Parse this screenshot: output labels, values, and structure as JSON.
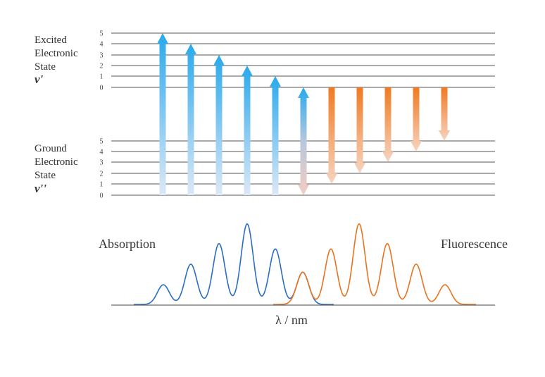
{
  "excited_state": {
    "line1": "Excited",
    "line2": "Electronic",
    "line3": "State",
    "symbol": "ν'",
    "levels": [
      "5",
      "4",
      "3",
      "2",
      "1",
      "0"
    ]
  },
  "ground_state": {
    "line1": "Ground",
    "line2": "Electronic",
    "line3": "State",
    "symbol": "ν''",
    "levels": [
      "5",
      "4",
      "3",
      "2",
      "1",
      "0"
    ]
  },
  "absorption_transitions": [
    {
      "from_v": 0,
      "to_v": 5
    },
    {
      "from_v": 0,
      "to_v": 4
    },
    {
      "from_v": 0,
      "to_v": 3
    },
    {
      "from_v": 0,
      "to_v": 2
    },
    {
      "from_v": 0,
      "to_v": 1
    },
    {
      "from_v": 0,
      "to_v": 0
    }
  ],
  "emission_transitions": [
    {
      "from_v": 0,
      "to_v": 1
    },
    {
      "from_v": 0,
      "to_v": 2
    },
    {
      "from_v": 0,
      "to_v": 3
    },
    {
      "from_v": 0,
      "to_v": 4
    },
    {
      "from_v": 0,
      "to_v": 5
    }
  ],
  "spectra": {
    "absorption_label": "Absorption",
    "fluorescence_label": "Fluorescence",
    "absorption_peaks": [
      0.22,
      0.45,
      0.68,
      0.9,
      0.62,
      0.36
    ],
    "fluorescence_peaks": [
      0.36,
      0.62,
      0.9,
      0.68,
      0.45,
      0.22
    ],
    "x_axis_label": "λ / nm"
  },
  "colors": {
    "absorption": "#2b6cc4",
    "absorption_arrow_top": "#29a9ec",
    "absorption_arrow_bottom": "#dde8f6",
    "fluorescence": "#e8731f",
    "fluorescence_arrow_top": "#ef7a22",
    "fluorescence_arrow_bottom": "#f7d4c0",
    "level_line": "#555555"
  }
}
